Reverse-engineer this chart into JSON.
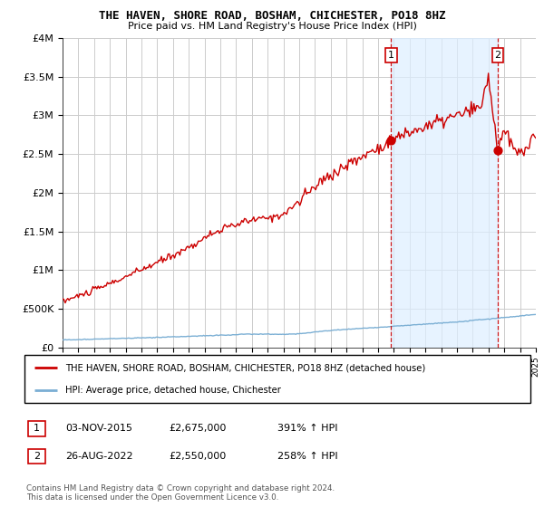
{
  "title": "THE HAVEN, SHORE ROAD, BOSHAM, CHICHESTER, PO18 8HZ",
  "subtitle": "Price paid vs. HM Land Registry's House Price Index (HPI)",
  "legend_line1": "THE HAVEN, SHORE ROAD, BOSHAM, CHICHESTER, PO18 8HZ (detached house)",
  "legend_line2": "HPI: Average price, detached house, Chichester",
  "footnote": "Contains HM Land Registry data © Crown copyright and database right 2024.\nThis data is licensed under the Open Government Licence v3.0.",
  "transaction1_label": "1",
  "transaction1_date": "03-NOV-2015",
  "transaction1_price": "£2,675,000",
  "transaction1_hpi": "391% ↑ HPI",
  "transaction2_label": "2",
  "transaction2_date": "26-AUG-2022",
  "transaction2_price": "£2,550,000",
  "transaction2_hpi": "258% ↑ HPI",
  "hpi_color": "#7bafd4",
  "property_color": "#cc0000",
  "shade_color": "#ddeeff",
  "dashed_color": "#cc0000",
  "background_color": "#ffffff",
  "grid_color": "#cccccc",
  "ylim_min": 0,
  "ylim_max": 4000000,
  "yticks": [
    0,
    500000,
    1000000,
    1500000,
    2000000,
    2500000,
    3000000,
    3500000,
    4000000
  ],
  "ytick_labels": [
    "£0",
    "£500K",
    "£1M",
    "£1.5M",
    "£2M",
    "£2.5M",
    "£3M",
    "£3.5M",
    "£4M"
  ],
  "xmin": 1995,
  "xmax": 2025,
  "t1_x": 2015.833,
  "t1_y": 2675000,
  "t2_x": 2022.583,
  "t2_y": 2550000
}
